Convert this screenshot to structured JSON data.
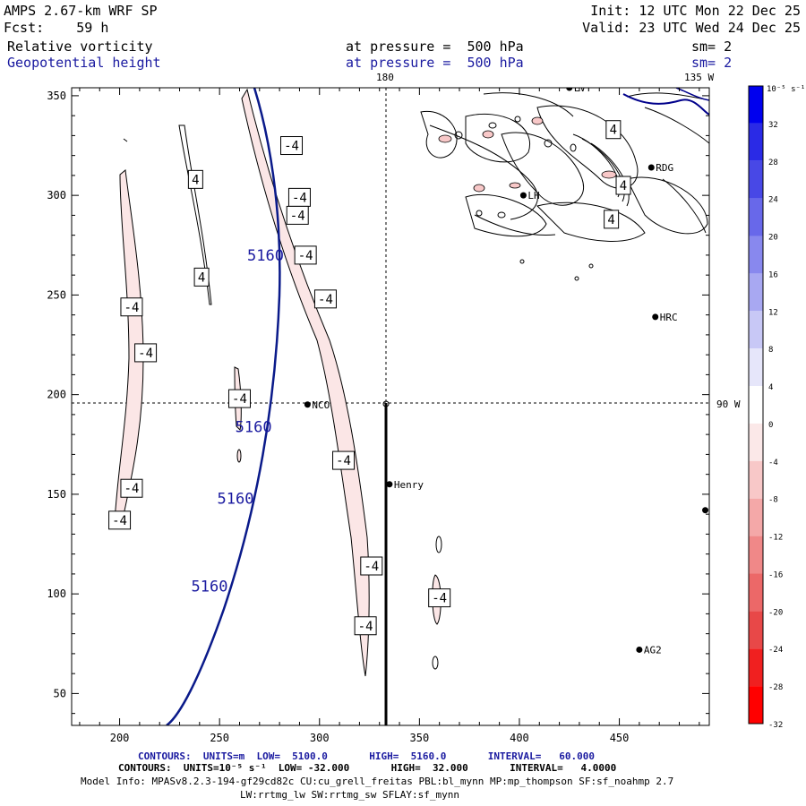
{
  "header": {
    "model": "AMPS 2.67-km WRF SP",
    "init": "Init: 12 UTC Mon 22 Dec 25",
    "fcst": "Fcst:    59 h",
    "valid": "Valid: 23 UTC Wed 24 Dec 25",
    "field1": "Relative vorticity",
    "field1_level": "at pressure =  500 hPa",
    "field1_sm": "sm= 2",
    "field2": "Geopotential height",
    "field2_level": "at pressure =  500 hPa",
    "field2_sm": "sm= 2"
  },
  "map": {
    "lon_top_label": "180",
    "lon_top_right_label": "135 W",
    "lon_right_label": "90 W",
    "x_ticks": [
      "200",
      "250",
      "300",
      "350",
      "400",
      "450"
    ],
    "y_ticks": [
      "350",
      "300",
      "250",
      "200",
      "150",
      "100",
      "50"
    ],
    "stations": [
      {
        "name": "LVT",
        "x": 425,
        "y": 354
      },
      {
        "name": "RDG",
        "x": 466,
        "y": 314
      },
      {
        "name": "LH",
        "x": 402,
        "y": 300
      },
      {
        "name": "HRC",
        "x": 468,
        "y": 239
      },
      {
        "name": "NCO",
        "x": 294,
        "y": 195
      },
      {
        "name": "Henry",
        "x": 335,
        "y": 155
      },
      {
        "name": "AG2",
        "x": 460,
        "y": 72
      },
      {
        "name": "",
        "x": 493,
        "y": 142
      }
    ],
    "height_contour_label": "5160",
    "height_labels": [
      {
        "text": "5160",
        "x": 273,
        "y": 270
      },
      {
        "text": "5160",
        "x": 267,
        "y": 184
      },
      {
        "text": "5160",
        "x": 258,
        "y": 148
      },
      {
        "text": "5160",
        "x": 245,
        "y": 104
      }
    ],
    "vort_labels": [
      {
        "text": "-4",
        "x": 286,
        "y": 325
      },
      {
        "text": "-4",
        "x": 290,
        "y": 299
      },
      {
        "text": "-4",
        "x": 289,
        "y": 290
      },
      {
        "text": "-4",
        "x": 293,
        "y": 270
      },
      {
        "text": "-4",
        "x": 303,
        "y": 248
      },
      {
        "text": "-4",
        "x": 206,
        "y": 244
      },
      {
        "text": "-4",
        "x": 213,
        "y": 221
      },
      {
        "text": "-4",
        "x": 260,
        "y": 198
      },
      {
        "text": "-4",
        "x": 312,
        "y": 167
      },
      {
        "text": "-4",
        "x": 206,
        "y": 153
      },
      {
        "text": "-4",
        "x": 200,
        "y": 137
      },
      {
        "text": "-4",
        "x": 326,
        "y": 114
      },
      {
        "text": "-4",
        "x": 323,
        "y": 84
      },
      {
        "text": "-4",
        "x": 360,
        "y": 98
      },
      {
        "text": "4",
        "x": 238,
        "y": 308
      },
      {
        "text": "4",
        "x": 241,
        "y": 259
      },
      {
        "text": "4",
        "x": 447,
        "y": 333
      },
      {
        "text": "4",
        "x": 452,
        "y": 305
      },
      {
        "text": "4",
        "x": 446,
        "y": 288
      }
    ]
  },
  "colorbar": {
    "unit": "10⁻⁵ s⁻¹",
    "labels": [
      "32",
      "28",
      "24",
      "20",
      "16",
      "12",
      "8",
      "4",
      "0",
      "-4",
      "-8",
      "-12",
      "-16",
      "-20",
      "-24",
      "-28",
      "-32"
    ],
    "colors": [
      "#0000ee",
      "#2a2ae6",
      "#4848e6",
      "#6868ea",
      "#8888ee",
      "#a8a8f2",
      "#c8c8f6",
      "#e6e6fa",
      "#ffffff",
      "#fbe8e8",
      "#f8c8c8",
      "#f4a8a8",
      "#f08888",
      "#ec6868",
      "#e84848",
      "#f02020",
      "#ff0000"
    ]
  },
  "footer": {
    "contours1": "CONTOURS:  UNITS=m  LOW=  5100.0       HIGH=  5160.0       INTERVAL=   60.000",
    "contours2": "CONTOURS:  UNITS=10⁻⁵ s⁻¹  LOW= -32.000       HIGH=  32.000       INTERVAL=   4.0000",
    "model_info": "Model Info: MPASv8.2.3-194-gf29cd82c CU:cu_grell_freitas PBL:bl_mynn MP:mp_thompson SF:sf_noahmp 2.7",
    "model_info2": "LW:rrtmg_lw SW:rrtmg_sw SFLAY:sf_mynn"
  }
}
